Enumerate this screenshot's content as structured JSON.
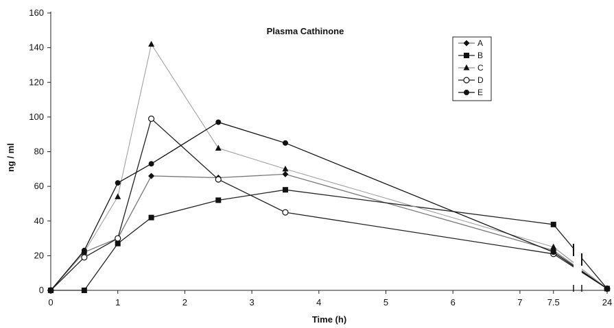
{
  "chart_data": {
    "type": "line",
    "title": "Plasma Cathinone",
    "xlabel": "Time (h)",
    "ylabel": "ng / ml",
    "ylim": [
      0,
      160
    ],
    "yticks": [
      0,
      20,
      40,
      60,
      80,
      100,
      120,
      140,
      160
    ],
    "x_tick_labels": [
      "0",
      "1",
      "2",
      "3",
      "4",
      "5",
      "6",
      "7",
      "7.5",
      "24"
    ],
    "x_tick_values": [
      0,
      1,
      2,
      3,
      4,
      5,
      6,
      7,
      7.5,
      24
    ],
    "x_break_between": [
      7.5,
      24
    ],
    "legend_position": "top-right",
    "grid": false,
    "series": [
      {
        "name": "A",
        "marker": "diamond",
        "color": "#777777",
        "x": [
          0,
          0.5,
          1,
          1.5,
          2.5,
          3.5,
          7.5,
          24
        ],
        "y": [
          0,
          22,
          30,
          66,
          65,
          67,
          23,
          1
        ]
      },
      {
        "name": "B",
        "marker": "square",
        "color": "#222222",
        "x": [
          0,
          0.5,
          1,
          1.5,
          2.5,
          3.5,
          7.5,
          24
        ],
        "y": [
          0,
          0,
          27,
          42,
          52,
          58,
          38,
          1
        ]
      },
      {
        "name": "C",
        "marker": "triangle",
        "color": "#999999",
        "x": [
          0,
          0.5,
          1,
          1.5,
          2.5,
          3.5,
          7.5,
          24
        ],
        "y": [
          0,
          22,
          54,
          142,
          82,
          70,
          25,
          1
        ]
      },
      {
        "name": "D",
        "marker": "circle-open",
        "color": "#222222",
        "x": [
          0,
          0.5,
          1,
          1.5,
          2.5,
          3.5,
          7.5,
          24
        ],
        "y": [
          0,
          19,
          30,
          99,
          64,
          45,
          21,
          1
        ]
      },
      {
        "name": "E",
        "marker": "circle",
        "color": "#111111",
        "x": [
          0,
          0.5,
          1,
          1.5,
          2.5,
          3.5,
          7.5,
          24
        ],
        "y": [
          0,
          23,
          62,
          73,
          97,
          85,
          22,
          1
        ]
      }
    ]
  }
}
